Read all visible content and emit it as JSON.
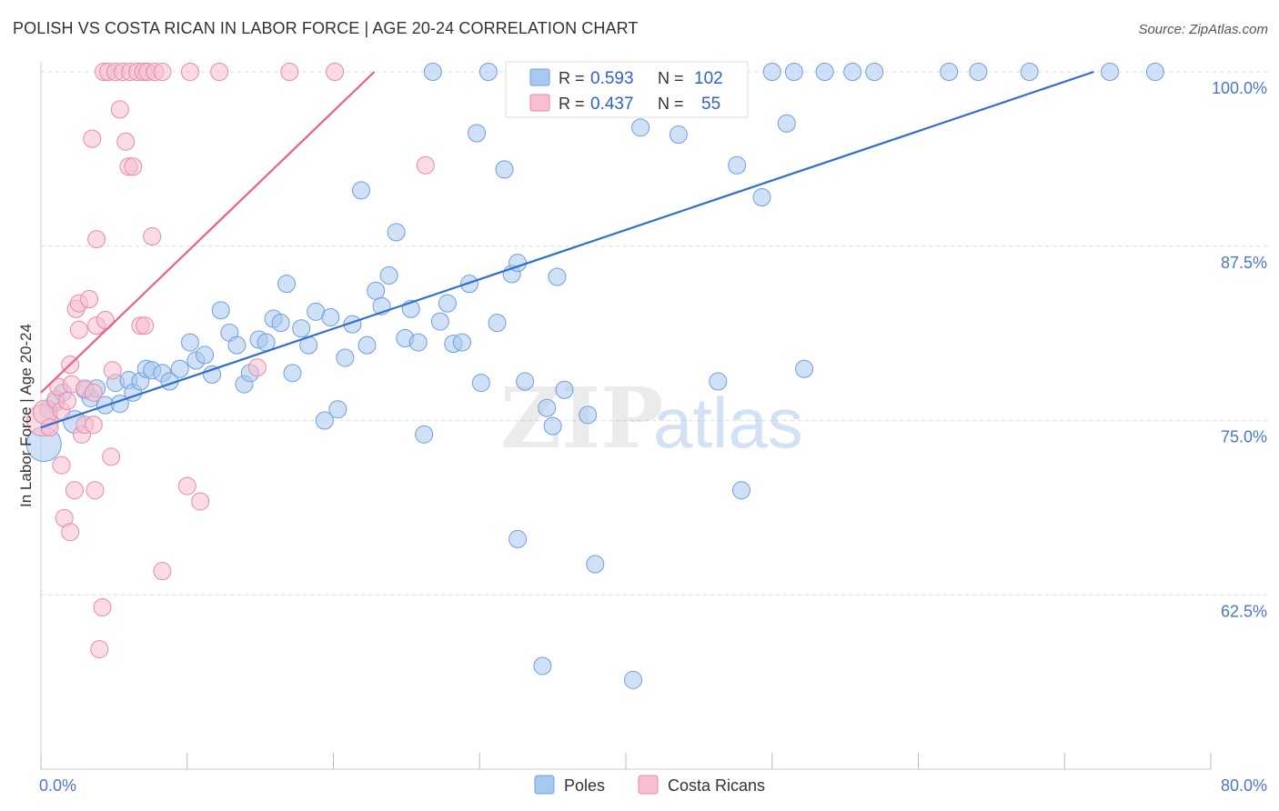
{
  "title": "POLISH VS COSTA RICAN IN LABOR FORCE | AGE 20-24 CORRELATION CHART",
  "source": "Source: ZipAtlas.com",
  "colors": {
    "poles_fill": "#a9c8f0",
    "poles_stroke": "#6f9fdc",
    "poles_line": "#2f6fd0",
    "costa_fill": "#f7bfd0",
    "costa_stroke": "#e98aa8",
    "costa_line": "#e8608a",
    "grid": "#dddddd",
    "axis_label": "#4a78c8"
  },
  "watermark": {
    "part1": "ZIP",
    "part2": "atlas"
  },
  "legend": {
    "rows": [
      {
        "r_label": "R =",
        "r_value": "0.593",
        "n_label": "N =",
        "n_value": "102"
      },
      {
        "r_label": "R =",
        "r_value": "0.437",
        "n_label": "N =",
        "n_value": "55"
      }
    ]
  },
  "bottom_legend": [
    "Poles",
    "Costa Ricans"
  ],
  "chart_data": {
    "type": "scatter",
    "title": "POLISH VS COSTA RICAN IN LABOR FORCE | AGE 20-24 CORRELATION CHART",
    "xlabel": "",
    "ylabel": "In Labor Force | Age 20-24",
    "xlim": [
      0,
      80
    ],
    "ylim": [
      50,
      100
    ],
    "x_ticks_labeled": [
      "0.0%",
      "80.0%"
    ],
    "y_ticks": [
      62.5,
      75.0,
      87.5,
      100.0
    ],
    "y_tick_labels": [
      "62.5%",
      "75.0%",
      "87.5%",
      "100.0%"
    ],
    "grid": true,
    "legend_position": "top-center",
    "series": [
      {
        "name": "Poles",
        "r": 0.593,
        "n": 102,
        "trend": {
          "x0": 0.0,
          "y0": 74.5,
          "x1": 72.0,
          "y1": 100.0
        },
        "points": [
          [
            0.2,
            73.3,
            2
          ],
          [
            0.5,
            75.8,
            1
          ],
          [
            1.0,
            76.3,
            1
          ],
          [
            1.5,
            77.0,
            1
          ],
          [
            2.3,
            74.9,
            1.3
          ],
          [
            3.0,
            77.2,
            1
          ],
          [
            3.4,
            76.6,
            1
          ],
          [
            3.8,
            77.3,
            1
          ],
          [
            4.4,
            76.1,
            1
          ],
          [
            5.1,
            77.7,
            1
          ],
          [
            5.4,
            76.2,
            1
          ],
          [
            6.0,
            77.9,
            1
          ],
          [
            6.3,
            77.0,
            1
          ],
          [
            6.8,
            77.8,
            1
          ],
          [
            7.2,
            78.7,
            1
          ],
          [
            7.6,
            78.6,
            1
          ],
          [
            8.3,
            78.4,
            1
          ],
          [
            8.8,
            77.8,
            1
          ],
          [
            9.5,
            78.7,
            1
          ],
          [
            10.2,
            80.6,
            1
          ],
          [
            10.6,
            79.3,
            1
          ],
          [
            11.2,
            79.7,
            1
          ],
          [
            11.7,
            78.3,
            1
          ],
          [
            12.3,
            82.9,
            1
          ],
          [
            12.9,
            81.3,
            1
          ],
          [
            13.4,
            80.4,
            1
          ],
          [
            13.9,
            77.6,
            1
          ],
          [
            14.3,
            78.4,
            1
          ],
          [
            14.9,
            80.8,
            1
          ],
          [
            15.4,
            80.6,
            1
          ],
          [
            15.9,
            82.3,
            1
          ],
          [
            16.4,
            82.0,
            1
          ],
          [
            16.8,
            84.8,
            1
          ],
          [
            17.2,
            78.4,
            1
          ],
          [
            17.8,
            81.6,
            1
          ],
          [
            18.3,
            80.4,
            1
          ],
          [
            18.8,
            82.8,
            1
          ],
          [
            19.4,
            75.0,
            1
          ],
          [
            19.8,
            82.4,
            1
          ],
          [
            20.3,
            75.8,
            1
          ],
          [
            20.8,
            79.5,
            1
          ],
          [
            21.3,
            81.9,
            1
          ],
          [
            21.9,
            91.5,
            1
          ],
          [
            22.3,
            80.4,
            1
          ],
          [
            22.9,
            84.3,
            1
          ],
          [
            23.3,
            83.2,
            1
          ],
          [
            23.8,
            85.4,
            1
          ],
          [
            24.3,
            88.5,
            1
          ],
          [
            24.9,
            80.9,
            1
          ],
          [
            25.3,
            83.0,
            1
          ],
          [
            25.8,
            80.6,
            1
          ],
          [
            26.2,
            74.0,
            1
          ],
          [
            26.8,
            100.0,
            1
          ],
          [
            27.3,
            82.1,
            1
          ],
          [
            27.8,
            83.4,
            1
          ],
          [
            28.2,
            80.5,
            1
          ],
          [
            28.8,
            80.6,
            1
          ],
          [
            29.3,
            84.8,
            1
          ],
          [
            29.8,
            95.6,
            1
          ],
          [
            30.1,
            77.7,
            1
          ],
          [
            30.6,
            100.0,
            1
          ],
          [
            31.2,
            82.0,
            1
          ],
          [
            31.7,
            93.0,
            1
          ],
          [
            32.2,
            85.5,
            1
          ],
          [
            32.6,
            86.3,
            1
          ],
          [
            33.1,
            77.8,
            1
          ],
          [
            33.6,
            100.0,
            1
          ],
          [
            34.1,
            100.0,
            1
          ],
          [
            34.6,
            75.9,
            1
          ],
          [
            35.0,
            74.6,
            1
          ],
          [
            35.3,
            85.3,
            1
          ],
          [
            35.8,
            77.2,
            1
          ],
          [
            36.3,
            100.0,
            1
          ],
          [
            37.0,
            100.0,
            1
          ],
          [
            37.4,
            75.4,
            1
          ],
          [
            37.9,
            64.7,
            1
          ],
          [
            38.5,
            100.0,
            1
          ],
          [
            39.3,
            100.0,
            1
          ],
          [
            40.2,
            100.0,
            1
          ],
          [
            41.0,
            96.0,
            1
          ],
          [
            41.6,
            100.0,
            1
          ],
          [
            42.6,
            100.0,
            1
          ],
          [
            43.2,
            100.0,
            1
          ],
          [
            43.6,
            95.5,
            1
          ],
          [
            44.5,
            100.0,
            1
          ],
          [
            46.3,
            77.8,
            1
          ],
          [
            47.0,
            100.0,
            1
          ],
          [
            47.6,
            93.3,
            1
          ],
          [
            47.9,
            70.0,
            1
          ],
          [
            49.3,
            91.0,
            1
          ],
          [
            50.0,
            100.0,
            1
          ],
          [
            51.0,
            96.3,
            1
          ],
          [
            51.5,
            100.0,
            1
          ],
          [
            52.2,
            78.7,
            1
          ],
          [
            53.6,
            100.0,
            1
          ],
          [
            55.5,
            100.0,
            1
          ],
          [
            57.0,
            100.0,
            1
          ],
          [
            62.1,
            100.0,
            1
          ],
          [
            64.1,
            100.0,
            1
          ],
          [
            67.6,
            100.0,
            1
          ],
          [
            73.1,
            100.0,
            1
          ],
          [
            76.2,
            100.0,
            1
          ],
          [
            32.6,
            66.5,
            1
          ],
          [
            34.3,
            57.4,
            1
          ],
          [
            40.5,
            56.4,
            1
          ]
        ]
      },
      {
        "name": "Costa Ricans",
        "r": 0.437,
        "n": 55,
        "trend": {
          "x0": 0.0,
          "y0": 77.0,
          "x1": 22.8,
          "y1": 100.0
        },
        "points": [
          [
            0.1,
            75.0,
            1.8
          ],
          [
            0.3,
            75.6,
            1.4
          ],
          [
            0.6,
            74.5,
            1
          ],
          [
            1.0,
            76.5,
            1
          ],
          [
            1.2,
            77.4,
            1
          ],
          [
            1.4,
            71.8,
            1
          ],
          [
            1.4,
            75.7,
            1
          ],
          [
            1.6,
            68.0,
            1
          ],
          [
            1.8,
            76.4,
            1
          ],
          [
            2.0,
            67.0,
            1
          ],
          [
            2.0,
            79.0,
            1
          ],
          [
            2.1,
            77.6,
            1
          ],
          [
            2.3,
            70.0,
            1
          ],
          [
            2.4,
            83.0,
            1
          ],
          [
            2.6,
            83.4,
            1
          ],
          [
            2.6,
            81.5,
            1
          ],
          [
            2.8,
            74.0,
            1
          ],
          [
            3.0,
            74.7,
            1
          ],
          [
            3.0,
            77.3,
            1
          ],
          [
            3.3,
            83.7,
            1
          ],
          [
            3.6,
            77.0,
            1
          ],
          [
            3.6,
            74.7,
            1
          ],
          [
            3.8,
            81.8,
            1
          ],
          [
            3.5,
            95.2,
            1
          ],
          [
            3.7,
            70.0,
            1
          ],
          [
            3.8,
            88.0,
            1
          ],
          [
            4.0,
            58.6,
            1
          ],
          [
            4.2,
            61.6,
            1
          ],
          [
            4.3,
            100.0,
            1
          ],
          [
            4.4,
            82.2,
            1
          ],
          [
            4.6,
            100.0,
            1
          ],
          [
            4.8,
            72.4,
            1
          ],
          [
            4.9,
            78.6,
            1
          ],
          [
            5.1,
            100.0,
            1
          ],
          [
            5.4,
            97.3,
            1
          ],
          [
            5.6,
            100.0,
            1
          ],
          [
            5.8,
            95.0,
            1
          ],
          [
            6.0,
            93.2,
            1
          ],
          [
            6.1,
            100.0,
            1
          ],
          [
            6.3,
            93.2,
            1
          ],
          [
            6.6,
            100.0,
            1
          ],
          [
            6.8,
            81.8,
            1
          ],
          [
            7.0,
            100.0,
            1
          ],
          [
            7.1,
            81.8,
            1
          ],
          [
            7.3,
            100.0,
            1
          ],
          [
            7.6,
            88.2,
            1
          ],
          [
            7.8,
            100.0,
            1
          ],
          [
            8.3,
            100.0,
            1
          ],
          [
            8.3,
            64.2,
            1
          ],
          [
            10.0,
            70.3,
            1
          ],
          [
            10.2,
            100.0,
            1
          ],
          [
            10.9,
            69.2,
            1
          ],
          [
            12.2,
            100.0,
            1
          ],
          [
            14.8,
            78.8,
            1
          ],
          [
            17.0,
            100.0,
            1
          ],
          [
            20.1,
            100.0,
            1
          ],
          [
            26.3,
            93.3,
            1
          ]
        ]
      }
    ]
  }
}
